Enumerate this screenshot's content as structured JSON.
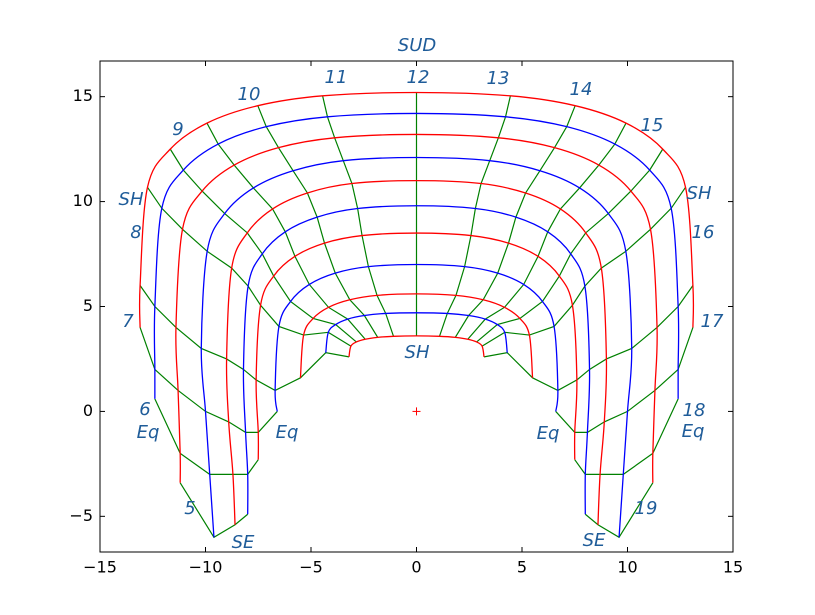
{
  "chart_data": {
    "type": "line",
    "xlim": [
      -15,
      15
    ],
    "ylim": [
      -6.7,
      16.7
    ],
    "xticks": [
      {
        "value": -15,
        "label": "−15"
      },
      {
        "value": -10,
        "label": "−10"
      },
      {
        "value": -5,
        "label": "−5"
      },
      0,
      5,
      10,
      15
    ],
    "yticks": [
      {
        "value": -5,
        "label": "−5"
      },
      0,
      5,
      10,
      15
    ],
    "hour_line_color": "#008000",
    "series": [
      {
        "color": "#ff0000",
        "x": [
          -13.1,
          -13.1,
          -12.75,
          -11.67,
          -9.93,
          -7.52,
          -4.45,
          0,
          4.45,
          7.52,
          9.93,
          11.67,
          12.75,
          13.1,
          13.1
        ],
        "y": [
          4.0,
          6.0,
          10.68,
          12.5,
          13.74,
          14.57,
          15.04,
          15.2,
          15.04,
          14.57,
          13.74,
          12.5,
          10.68,
          6.0,
          4.0
        ]
      },
      {
        "color": "#0000ff",
        "x": [
          -12.4,
          -12.4,
          -12.4,
          -12.07,
          -11.05,
          -9.4,
          -7.12,
          -4.22,
          0,
          4.22,
          7.12,
          9.4,
          11.05,
          12.07,
          12.4,
          12.4,
          12.4
        ],
        "y": [
          0.6,
          2.0,
          5.0,
          9.68,
          11.5,
          12.74,
          13.57,
          14.04,
          14.2,
          14.04,
          13.57,
          12.74,
          11.5,
          9.68,
          5.0,
          2.0,
          0.6
        ]
      },
      {
        "color": "#ff0000",
        "x": [
          -11.2,
          -11.2,
          -11.3,
          -11.4,
          -11.09,
          -10.16,
          -8.64,
          -6.54,
          -3.88,
          0,
          3.88,
          6.54,
          8.64,
          10.16,
          11.09,
          11.4,
          11.3,
          11.2,
          11.2
        ],
        "y": [
          -3.4,
          -2.0,
          1.0,
          4.0,
          8.68,
          10.5,
          11.74,
          12.57,
          13.04,
          13.2,
          13.04,
          12.57,
          11.74,
          10.5,
          8.68,
          4.0,
          1.0,
          -2.0,
          -3.4
        ]
      },
      {
        "color": "#0000ff",
        "x": [
          -9.6,
          -9.8,
          -10.0,
          -10.2,
          -9.92,
          -9.09,
          -7.73,
          -5.85,
          -3.47,
          0,
          3.47,
          5.85,
          7.73,
          9.09,
          9.92,
          10.2,
          10.0,
          9.8,
          9.6
        ],
        "y": [
          -6.0,
          -3.0,
          0.0,
          3.0,
          7.63,
          9.43,
          10.65,
          11.47,
          11.95,
          12.1,
          11.95,
          11.47,
          10.65,
          9.43,
          7.63,
          3.0,
          0.0,
          -3.0,
          -6.0
        ]
      },
      {
        "color": "#ff0000",
        "x": [
          -8.6,
          -8.7,
          -8.9,
          -9.0,
          -8.76,
          -8.02,
          -6.82,
          -5.17,
          -3.06,
          0,
          3.06,
          5.17,
          6.82,
          8.02,
          8.76,
          9.0,
          8.9,
          8.7,
          8.6
        ],
        "y": [
          -5.4,
          -3.0,
          -0.5,
          2.5,
          6.83,
          8.51,
          9.65,
          10.41,
          10.86,
          11.0,
          10.86,
          10.41,
          9.65,
          8.51,
          6.83,
          2.5,
          -0.5,
          -3.0,
          -5.4
        ]
      },
      {
        "color": "#0000ff",
        "x": [
          -8.0,
          -8.0,
          -8.1,
          -8.2,
          -7.98,
          -7.31,
          -6.22,
          -4.71,
          -2.79,
          0,
          2.79,
          4.71,
          6.22,
          7.31,
          7.98,
          8.2,
          8.1,
          8.0,
          8.0
        ],
        "y": [
          -4.9,
          -3.0,
          -1.0,
          2.0,
          5.97,
          7.51,
          8.56,
          9.26,
          9.67,
          9.8,
          9.67,
          9.26,
          8.56,
          7.51,
          5.97,
          2.0,
          -1.0,
          -3.0,
          -4.9
        ]
      },
      {
        "color": "#ff0000",
        "x": [
          -7.5,
          -7.5,
          -7.6,
          -7.39,
          -6.77,
          -5.76,
          -4.36,
          -2.58,
          0,
          2.58,
          4.36,
          5.76,
          6.77,
          7.39,
          7.6,
          7.5,
          7.5
        ],
        "y": [
          -2.3,
          -1.0,
          1.5,
          5.06,
          6.45,
          7.39,
          8.02,
          8.38,
          8.5,
          8.38,
          8.02,
          7.39,
          6.45,
          5.06,
          1.5,
          -1.0,
          -2.3
        ]
      },
      {
        "color": "#0000ff",
        "x": [
          -6.6,
          -6.7,
          -6.52,
          -5.97,
          -5.08,
          -3.85,
          -2.28,
          0,
          2.28,
          3.85,
          5.08,
          5.97,
          6.52,
          6.7,
          6.6
        ],
        "y": [
          0.0,
          1.0,
          4.05,
          5.24,
          6.05,
          6.59,
          6.9,
          7.0,
          6.9,
          6.59,
          6.05,
          5.24,
          4.05,
          1.0,
          0.0
        ]
      },
      {
        "color": "#ff0000",
        "x": [
          -5.5,
          -5.35,
          -4.9,
          -4.17,
          -3.16,
          -1.87,
          0,
          1.87,
          3.16,
          4.17,
          4.9,
          5.35,
          5.5
        ],
        "y": [
          1.6,
          3.64,
          4.43,
          4.96,
          5.32,
          5.53,
          5.6,
          5.53,
          5.32,
          4.96,
          4.43,
          3.64,
          1.6
        ]
      },
      {
        "color": "#0000ff",
        "x": [
          -4.3,
          -4.18,
          -3.83,
          -3.26,
          -2.47,
          -1.46,
          0,
          1.46,
          2.47,
          3.26,
          3.83,
          4.18,
          4.3
        ],
        "y": [
          2.8,
          3.77,
          4.14,
          4.4,
          4.57,
          4.67,
          4.7,
          4.67,
          4.57,
          4.4,
          4.14,
          3.77,
          2.8
        ]
      },
      {
        "color": "#ff0000",
        "x": [
          -3.2,
          -3.11,
          -2.85,
          -2.43,
          -1.84,
          -1.09,
          0,
          1.09,
          1.84,
          2.43,
          2.85,
          3.11,
          3.2
        ],
        "y": [
          2.6,
          3.11,
          3.31,
          3.44,
          3.53,
          3.58,
          3.6,
          3.58,
          3.53,
          3.44,
          3.31,
          3.11,
          2.6
        ]
      }
    ],
    "origin_marker": {
      "x": 0,
      "y": 0,
      "color": "#ff0000"
    },
    "annotations": [
      "SUD",
      "12",
      "11",
      "13",
      "10",
      "14",
      "9",
      "15",
      "SH",
      "SH",
      "8",
      "16",
      "7",
      "17",
      "SH",
      "6",
      "18",
      "Eq",
      "Eq",
      "Eq",
      "Eq",
      "5",
      "19",
      "SE",
      "SE"
    ]
  }
}
